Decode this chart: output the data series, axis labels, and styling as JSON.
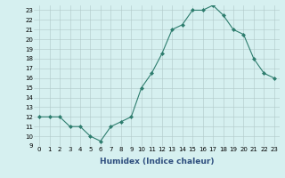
{
  "x": [
    0,
    1,
    2,
    3,
    4,
    5,
    6,
    7,
    8,
    9,
    10,
    11,
    12,
    13,
    14,
    15,
    16,
    17,
    18,
    19,
    20,
    21,
    22,
    23
  ],
  "y": [
    12,
    12,
    12,
    11,
    11,
    10,
    9.5,
    11,
    11.5,
    12,
    15,
    16.5,
    18.5,
    21,
    21.5,
    23,
    23,
    23.5,
    22.5,
    21,
    20.5,
    18,
    16.5,
    16
  ],
  "xlabel": "Humidex (Indice chaleur)",
  "ylim": [
    9,
    23.5
  ],
  "xlim": [
    -0.5,
    23.5
  ],
  "yticks": [
    9,
    10,
    11,
    12,
    13,
    14,
    15,
    16,
    17,
    18,
    19,
    20,
    21,
    22,
    23
  ],
  "xticks": [
    0,
    1,
    2,
    3,
    4,
    5,
    6,
    7,
    8,
    9,
    10,
    11,
    12,
    13,
    14,
    15,
    16,
    17,
    18,
    19,
    20,
    21,
    22,
    23
  ],
  "line_color": "#2e7d6e",
  "marker": "D",
  "marker_size": 2,
  "bg_color": "#d6f0f0",
  "grid_color": "#b0c8c8",
  "xlabel_color": "#2e4e7e",
  "xlabel_fontsize": 6.5,
  "tick_fontsize": 5
}
